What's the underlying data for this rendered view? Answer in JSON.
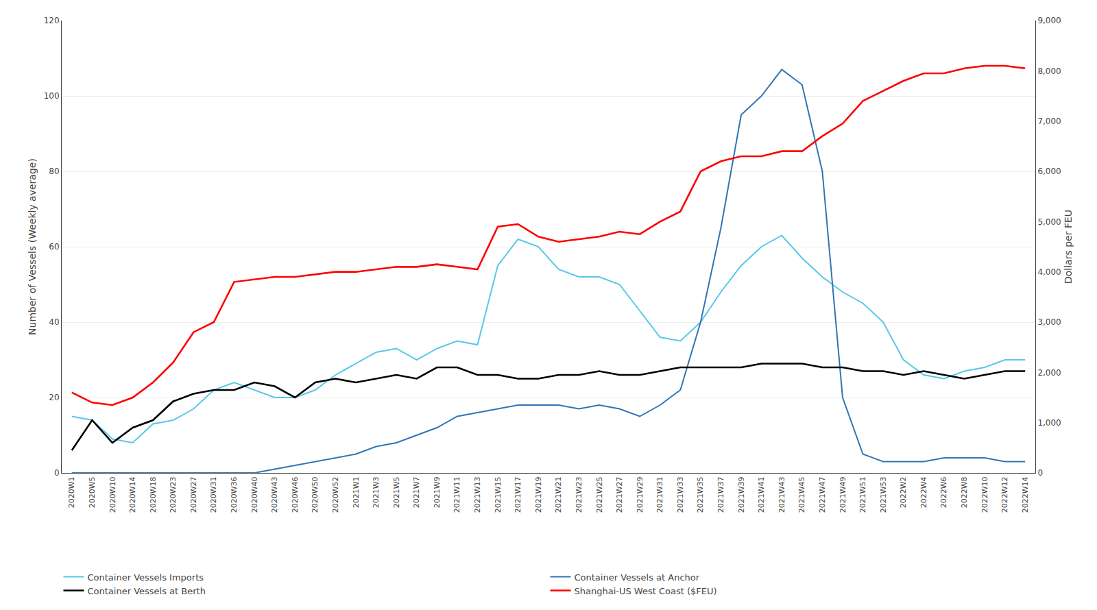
{
  "chart_data": {
    "type": "line",
    "categories": [
      "2020W1",
      "2020W5",
      "2020W10",
      "2020W14",
      "2020W18",
      "2020W23",
      "2020W27",
      "2020W31",
      "2020W36",
      "2020W40",
      "2020W43",
      "2020W46",
      "2020W50",
      "2020W52",
      "2021W1",
      "2021W3",
      "2021W5",
      "2021W7",
      "2021W9",
      "2021W11",
      "2021W13",
      "2021W15",
      "2021W17",
      "2021W19",
      "2021W21",
      "2021W23",
      "2021W25",
      "2021W27",
      "2021W29",
      "2021W31",
      "2021W33",
      "2021W35",
      "2021W37",
      "2021W39",
      "2021W41",
      "2021W43",
      "2021W45",
      "2021W47",
      "2021W49",
      "2021W51",
      "2021W53",
      "2022W2",
      "2022W4",
      "2022W6",
      "2022W8",
      "2022W10",
      "2022W12",
      "2022W14"
    ],
    "series": [
      {
        "name": "Container Vessels Imports",
        "color": "#56C8E8",
        "values": [
          15,
          14,
          9,
          8,
          13,
          14,
          17,
          22,
          24,
          22,
          20,
          20,
          22,
          26,
          29,
          32,
          33,
          30,
          33,
          35,
          34,
          55,
          62,
          60,
          54,
          52,
          52,
          50,
          43,
          36,
          35,
          40,
          48,
          55,
          60,
          63,
          57,
          52,
          48,
          45,
          40,
          30,
          26,
          25,
          27,
          28,
          30,
          30
        ]
      },
      {
        "name": "Container Vessels at Anchor",
        "color": "#2E75B6",
        "values": [
          0,
          0,
          0,
          0,
          0,
          0,
          0,
          0,
          0,
          0,
          1,
          2,
          3,
          4,
          5,
          7,
          8,
          10,
          12,
          15,
          16,
          17,
          18,
          18,
          18,
          17,
          18,
          17,
          15,
          18,
          22,
          40,
          65,
          95,
          100,
          107,
          103,
          80,
          20,
          5,
          3,
          3,
          3,
          4,
          4,
          4,
          3,
          3
        ]
      },
      {
        "name": "Container Vessels at Berth",
        "color": "#000000",
        "values": [
          6,
          14,
          8,
          12,
          14,
          19,
          21,
          22,
          22,
          24,
          23,
          20,
          24,
          25,
          24,
          25,
          26,
          25,
          28,
          28,
          26,
          26,
          25,
          25,
          26,
          26,
          27,
          26,
          26,
          27,
          28,
          28,
          28,
          28,
          29,
          29,
          29,
          28,
          28,
          27,
          27,
          26,
          27,
          26,
          25,
          26,
          27,
          27
        ]
      },
      {
        "name": "Shanghai-US West Coast ($FEU)",
        "color": "#FF0000",
        "axis": "y2",
        "values": [
          1600,
          1400,
          1350,
          1500,
          1800,
          2200,
          2800,
          3000,
          3800,
          3850,
          3900,
          3900,
          3950,
          4000,
          4000,
          4050,
          4100,
          4100,
          4150,
          4100,
          4050,
          4900,
          4950,
          4700,
          4600,
          4650,
          4700,
          4800,
          4750,
          5000,
          5200,
          6000,
          6200,
          6300,
          6300,
          6400,
          6400,
          6700,
          6950,
          7400,
          7600,
          7800,
          7950,
          7950,
          8050,
          8100,
          8100,
          8050
        ]
      }
    ],
    "y_label": "Number of Vessels (Weekly average)",
    "y2_label": "Dollars per FEU",
    "ylim": [
      0,
      120
    ],
    "yticks": [
      0,
      20,
      40,
      60,
      80,
      100,
      120
    ],
    "y2lim": [
      0,
      9000
    ],
    "y2ticks": [
      0,
      {
        "value": 1000,
        "label": "1,000"
      },
      {
        "value": 2000,
        "label": "2,000"
      },
      {
        "value": 3000,
        "label": "3,000"
      },
      {
        "value": 4000,
        "label": "4,000"
      },
      {
        "value": 5000,
        "label": "5,000"
      },
      {
        "value": 6000,
        "label": "6,000"
      },
      {
        "value": 7000,
        "label": "7,000"
      },
      {
        "value": 8000,
        "label": "8,000"
      },
      {
        "value": 9000,
        "label": "9,000"
      }
    ],
    "grid": true,
    "legend": "bottom"
  }
}
